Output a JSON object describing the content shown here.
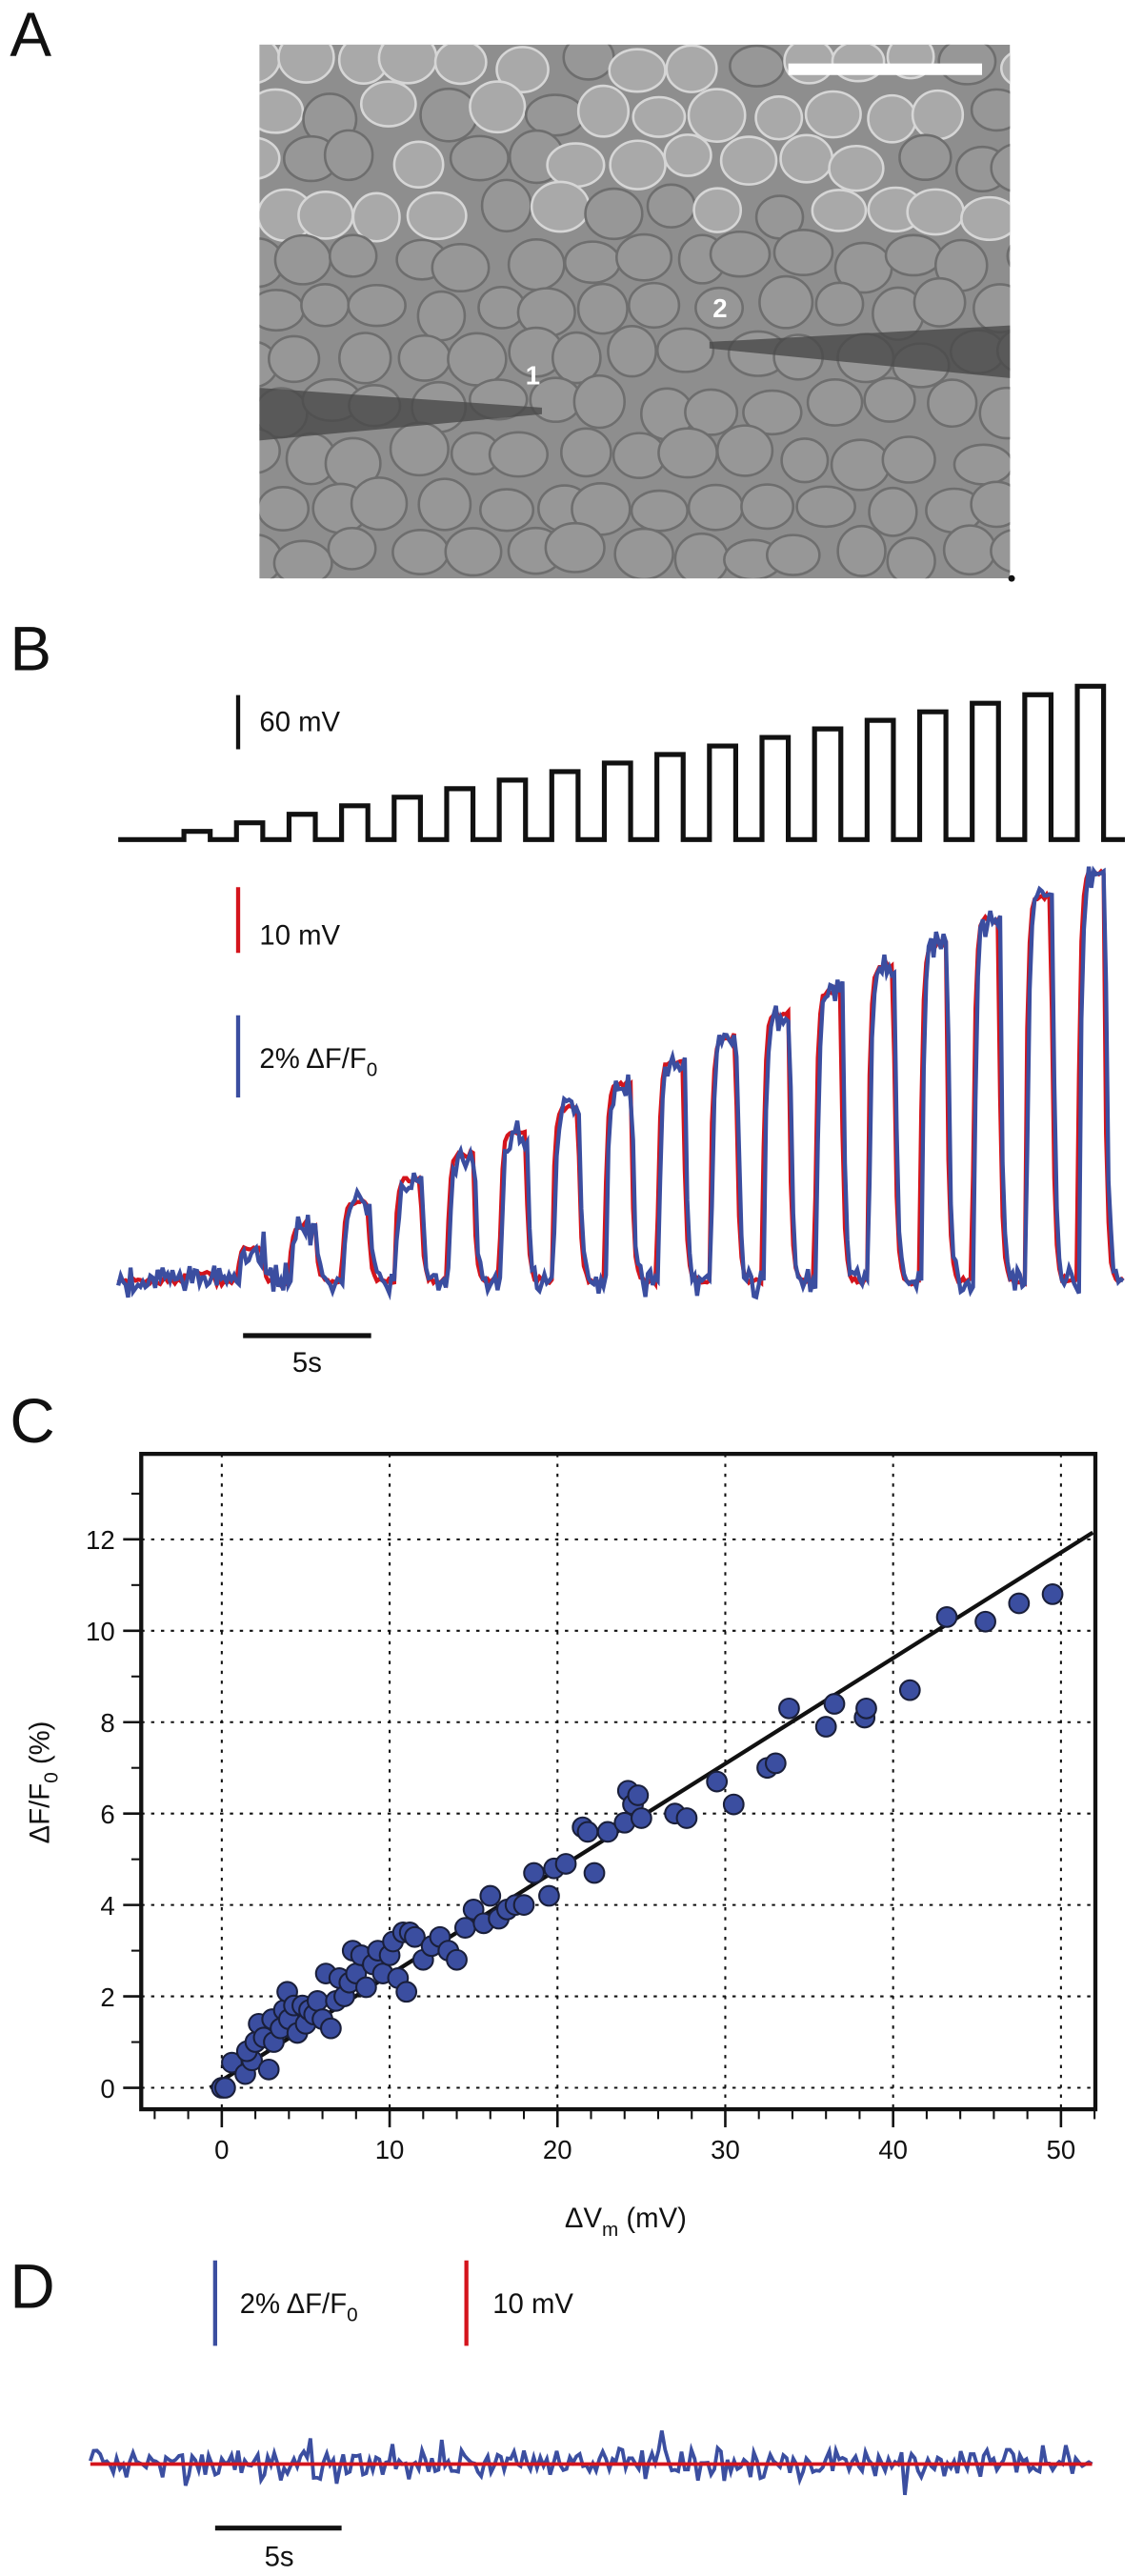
{
  "panel_labels": [
    "A",
    "B",
    "C",
    "D"
  ],
  "panel_a": {
    "pipette_labels": [
      "1",
      "2"
    ]
  },
  "panel_b": {
    "command_scale": "60 mV",
    "vm_scale": "10 mV",
    "dff_scale": {
      "text": "2% ΔF/F",
      "sub": "0"
    },
    "time_scale": "5s"
  },
  "chart_data": {
    "type": "scatter",
    "xlabel": {
      "text": "ΔV",
      "sub": "m",
      "rest": " (mV)"
    },
    "ylabel": {
      "text": "ΔF/F",
      "sub": "0",
      "rest": " (%)"
    },
    "xlim": [
      -4.8,
      52.05
    ],
    "ylim": [
      -0.47,
      13.87
    ],
    "xticks": [
      0,
      10,
      20,
      30,
      40,
      50
    ],
    "yticks": [
      0,
      2,
      4,
      6,
      8,
      10,
      12
    ],
    "xminorticks": [
      -4,
      -2,
      2,
      4,
      6,
      8,
      12,
      14,
      16,
      18,
      22,
      24,
      26,
      28,
      32,
      34,
      36,
      38,
      42,
      44,
      46,
      48,
      52
    ],
    "yminorticks": [
      1,
      3,
      5,
      7,
      9,
      11,
      13
    ],
    "grid": true,
    "color": "#3b4ea0",
    "x": [
      0,
      0.2,
      0.6,
      1.4,
      1.8,
      1.5,
      2,
      2.2,
      2.5,
      2.8,
      3,
      3.1,
      3.5,
      3.7,
      3.9,
      4,
      4.3,
      4.5,
      4.8,
      5,
      5.2,
      5.5,
      5.7,
      6,
      6.2,
      6.5,
      6.8,
      7,
      7.3,
      7.6,
      7.8,
      8,
      8.3,
      8.6,
      9,
      9.3,
      9.6,
      10,
      10.2,
      10.5,
      10.8,
      11,
      11.2,
      11.5,
      12,
      12.5,
      13,
      13.5,
      14,
      14.5,
      15,
      15.6,
      16,
      16.5,
      17,
      17.5,
      18,
      18.6,
      19.5,
      19.8,
      20.5,
      21.5,
      21.8,
      22.2,
      23,
      24,
      24.2,
      24.5,
      24.8,
      25,
      27,
      27.7,
      29.5,
      30.5,
      32.5,
      33,
      33.8,
      36,
      36.5,
      38.3,
      38.4,
      41,
      43.2,
      45.5,
      47.5,
      49.5
    ],
    "y": [
      0,
      0,
      0.55,
      0.3,
      0.6,
      0.8,
      1,
      1.4,
      1.1,
      0.4,
      1.5,
      1.0,
      1.3,
      1.7,
      2.1,
      1.5,
      1.8,
      1.2,
      1.8,
      1.4,
      1.7,
      1.6,
      1.9,
      1.5,
      2.5,
      1.3,
      1.9,
      2.4,
      2.0,
      2.3,
      3.0,
      2.5,
      2.9,
      2.2,
      2.7,
      3.0,
      2.5,
      2.9,
      3.2,
      2.4,
      3.4,
      2.1,
      3.4,
      3.3,
      2.8,
      3.1,
      3.3,
      3.0,
      2.8,
      3.5,
      3.9,
      3.6,
      4.2,
      3.7,
      3.9,
      4.0,
      4.0,
      4.7,
      4.2,
      4.8,
      4.9,
      5.7,
      5.6,
      4.7,
      5.6,
      5.8,
      6.5,
      6.2,
      6.4,
      5.9,
      6.0,
      5.9,
      6.7,
      6.2,
      7.0,
      7.1,
      8.3,
      7.9,
      8.4,
      8.1,
      8.3,
      8.7,
      10.3,
      10.2,
      10.6,
      10.8
    ],
    "fit_line": {
      "x": [
        -0.7,
        51.9
      ],
      "y": [
        0,
        12.15
      ],
      "color": "#111111"
    }
  },
  "panel_d": {
    "dff_scale": {
      "text": "2% ΔF/F",
      "sub": "0"
    },
    "vm_scale": "10 mV",
    "time_scale": "5s"
  }
}
